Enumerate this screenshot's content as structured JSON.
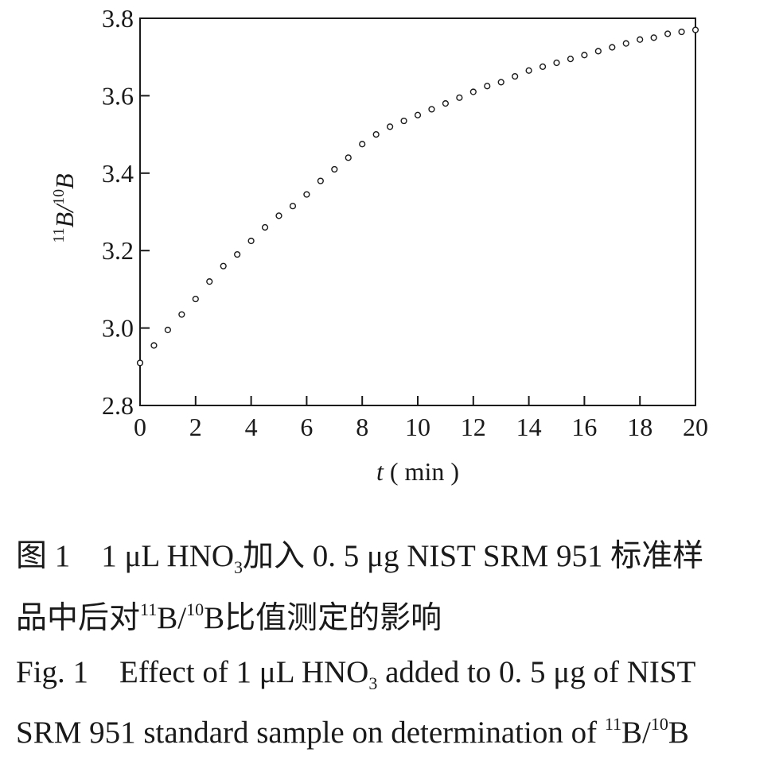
{
  "chart_data": {
    "type": "scatter",
    "title": "",
    "xlabel_italic": "t",
    "xlabel_rest": " ( min )",
    "ylabel_sup1": "11",
    "ylabel_b1": "B/",
    "ylabel_sup2": "10",
    "ylabel_b2": "B",
    "xlim": [
      0,
      20
    ],
    "ylim": [
      2.8,
      3.8
    ],
    "xticks": [
      "0",
      "2",
      "4",
      "6",
      "8",
      "10",
      "12",
      "14",
      "16",
      "18",
      "20"
    ],
    "yticks": [
      "2.8",
      "3.0",
      "3.2",
      "3.4",
      "3.6",
      "3.8"
    ],
    "grid": false,
    "legend": "none",
    "marker": "open-circle",
    "series": [
      {
        "x": [
          0,
          0.5,
          1,
          1.5,
          2,
          2.5,
          3,
          3.5,
          4,
          4.5,
          5,
          5.5,
          6,
          6.5,
          7,
          7.5,
          8,
          8.5,
          9,
          9.5,
          10,
          10.5,
          11,
          11.5,
          12,
          12.5,
          13,
          13.5,
          14,
          14.5,
          15,
          15.5,
          16,
          16.5,
          17,
          17.5,
          18,
          18.5,
          19,
          19.5,
          20
        ],
        "y": [
          2.91,
          2.955,
          2.995,
          3.035,
          3.075,
          3.12,
          3.16,
          3.19,
          3.225,
          3.26,
          3.29,
          3.315,
          3.345,
          3.38,
          3.41,
          3.44,
          3.475,
          3.5,
          3.52,
          3.535,
          3.55,
          3.565,
          3.58,
          3.595,
          3.61,
          3.625,
          3.635,
          3.65,
          3.665,
          3.675,
          3.685,
          3.695,
          3.705,
          3.715,
          3.725,
          3.735,
          3.745,
          3.75,
          3.76,
          3.765,
          3.77
        ]
      }
    ]
  },
  "caption": {
    "zh_line1_prefix": "图 1　1 μL HNO",
    "zh_line1_sub": "3",
    "zh_line1_suffix": "加入 0. 5 μg NIST SRM 951 标准样",
    "zh_line2_prefix": "品中后对",
    "zh_line2_sup1": "11",
    "zh_line2_mid": "B/",
    "zh_line2_sup2": "10",
    "zh_line2_suffix": "B比值测定的影响",
    "en_line1_prefix": "Fig. 1　Effect of 1 μL HNO",
    "en_line1_sub": "3",
    "en_line1_suffix": " added to 0. 5 μg of NIST",
    "en_line2_prefix": "SRM 951 standard sample on determination of ",
    "en_line2_sup1": "11",
    "en_line2_mid": "B/",
    "en_line2_sup2": "10",
    "en_line2_suffix": "B"
  }
}
